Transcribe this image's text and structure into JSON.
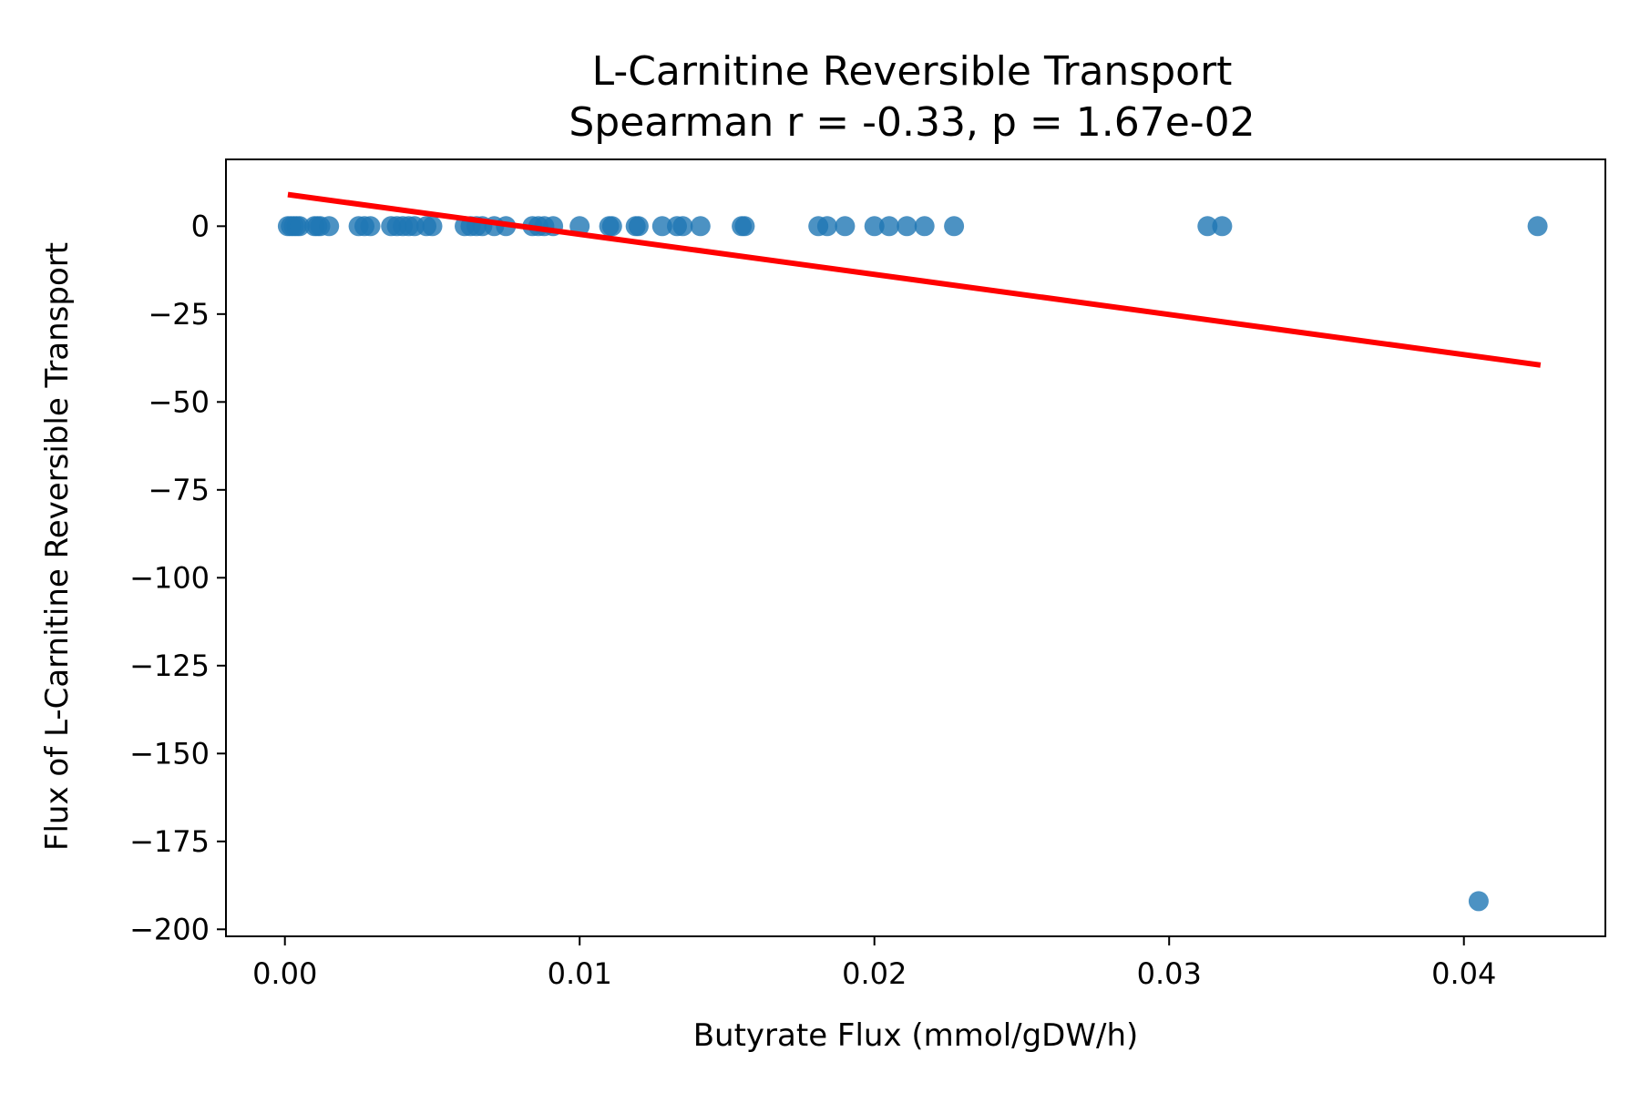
{
  "chart_data": {
    "type": "scatter",
    "title": "L-Carnitine Reversible Transport",
    "subtitle": "Spearman r = -0.33, p = 1.67e-02",
    "xlabel": "Butyrate Flux (mmol/gDW/h)",
    "ylabel": "Flux of L-Carnitine Reversible Transport",
    "xlim": [
      -0.002,
      0.0448
    ],
    "ylim": [
      -202,
      19
    ],
    "xticks": [
      0.0,
      0.01,
      0.02,
      0.03,
      0.04
    ],
    "xtick_labels": [
      "0.00",
      "0.01",
      "0.02",
      "0.03",
      "0.04"
    ],
    "yticks": [
      0,
      -25,
      -50,
      -75,
      -100,
      -125,
      -150,
      -175,
      -200
    ],
    "ytick_labels": [
      "0",
      "−25",
      "−50",
      "−75",
      "−100",
      "−125",
      "−150",
      "−175",
      "−200"
    ],
    "grid": false,
    "point_color": "#1f77b4",
    "line_color": "#ff0000",
    "points": {
      "x": [
        0.0001,
        0.0002,
        0.0003,
        0.0004,
        0.0005,
        0.001,
        0.0011,
        0.0012,
        0.0015,
        0.0025,
        0.0027,
        0.0029,
        0.0036,
        0.0038,
        0.004,
        0.0042,
        0.0044,
        0.0048,
        0.005,
        0.0061,
        0.0063,
        0.0065,
        0.0067,
        0.0071,
        0.0075,
        0.0084,
        0.0086,
        0.0088,
        0.0091,
        0.01,
        0.011,
        0.0111,
        0.0119,
        0.012,
        0.0128,
        0.0133,
        0.0135,
        0.0141,
        0.0155,
        0.0156,
        0.0181,
        0.0184,
        0.019,
        0.02,
        0.0205,
        0.0211,
        0.0217,
        0.0227,
        0.0313,
        0.0318,
        0.0425,
        0.0405
      ],
      "y": [
        0,
        0,
        0,
        0,
        0,
        0,
        0,
        0,
        0,
        0,
        0,
        0,
        0,
        0,
        0,
        0,
        0,
        0,
        0,
        0,
        0,
        0,
        0,
        0,
        0,
        0,
        0,
        0,
        0,
        0,
        0,
        0,
        0,
        0,
        0,
        0,
        0,
        0,
        0,
        0,
        0,
        0,
        0,
        0,
        0,
        0,
        0,
        0,
        0,
        0,
        0,
        -192
      ]
    },
    "fit_line": {
      "x": [
        0.0001,
        0.0426
      ],
      "y": [
        9,
        -39.5
      ]
    }
  }
}
